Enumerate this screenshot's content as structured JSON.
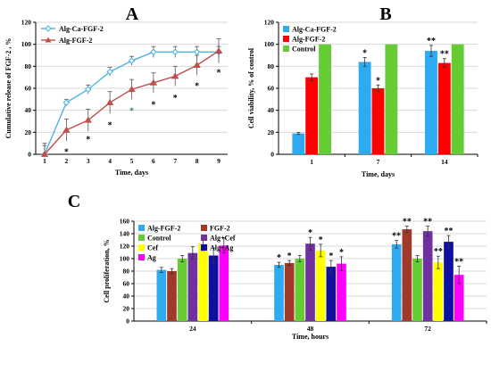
{
  "chart_data": [
    {
      "panel": "A",
      "type": "line",
      "xlabel": "Time, days",
      "ylabel": "Cumulative release of FGF-2 , %",
      "x": [
        1,
        2,
        3,
        4,
        5,
        6,
        7,
        8,
        9
      ],
      "xlim": [
        1,
        9
      ],
      "ylim": [
        0,
        120
      ],
      "yticks": [
        0,
        20,
        40,
        60,
        80,
        100,
        120
      ],
      "grid": "horizontal",
      "legend": "top-left",
      "series": [
        {
          "name": "Alg-Ca-FGF-2",
          "color": "#4fb3e0",
          "marker": "diamond",
          "values": [
            0,
            47,
            59,
            75,
            85,
            93,
            93,
            93,
            93
          ],
          "errors": [
            8,
            3,
            4,
            4,
            4,
            5,
            5,
            5,
            5
          ]
        },
        {
          "name": "Alg-FGF-2",
          "color": "#c0504d",
          "marker": "triangle",
          "values": [
            0,
            22,
            31,
            47,
            59,
            65,
            71,
            81,
            94
          ],
          "errors": [
            10,
            10,
            10,
            10,
            9,
            9,
            9,
            9,
            11
          ]
        }
      ],
      "annotations": [
        {
          "x": 2,
          "label": "*",
          "color": "#000000",
          "y": 3
        },
        {
          "x": 3,
          "label": "*",
          "color": "#000000",
          "y": 14
        },
        {
          "x": 4,
          "label": "*",
          "color": "#000000",
          "y": 27
        },
        {
          "x": 5,
          "label": "*",
          "color": "#2e8b57",
          "y": 40
        },
        {
          "x": 6,
          "label": "*",
          "color": "#000000",
          "y": 46
        },
        {
          "x": 7,
          "label": "*",
          "color": "#000000",
          "y": 52
        },
        {
          "x": 8,
          "label": "*",
          "color": "#000000",
          "y": 63
        },
        {
          "x": 9,
          "label": "*",
          "color": "#000000",
          "y": 75
        }
      ]
    },
    {
      "panel": "B",
      "type": "bar",
      "xlabel": "Time, days",
      "ylabel": "Cell viability, % of control",
      "categories": [
        "1",
        "7",
        "14"
      ],
      "ylim": [
        0,
        120
      ],
      "yticks": [
        0,
        20,
        40,
        60,
        80,
        100,
        120
      ],
      "grid": "horizontal",
      "legend": "top-left",
      "series": [
        {
          "name": "Alg-Ca-FGF-2",
          "color": "#2eaaf0",
          "values": [
            19,
            84,
            94
          ],
          "errors": [
            1,
            4,
            5
          ],
          "stars": [
            "",
            "*",
            "**"
          ]
        },
        {
          "name": "Alg-FGF-2",
          "color": "#ff0000",
          "values": [
            70,
            60,
            83
          ],
          "errors": [
            3,
            3,
            4
          ],
          "stars": [
            "",
            "*",
            "**"
          ]
        },
        {
          "name": "Control",
          "color": "#66cc33",
          "values": [
            100,
            100,
            100
          ],
          "errors": [
            0,
            0,
            0
          ],
          "stars": [
            "",
            "",
            ""
          ]
        }
      ]
    },
    {
      "panel": "C",
      "type": "bar",
      "xlabel": "Time, hours",
      "ylabel": "Cell proliferation, %",
      "categories": [
        "24",
        "48",
        "72"
      ],
      "ylim": [
        0,
        160
      ],
      "yticks": [
        0,
        20,
        40,
        60,
        80,
        100,
        120,
        140,
        160
      ],
      "grid": "horizontal",
      "legend": "top-left",
      "series": [
        {
          "name": "Alg-FGF-2",
          "color": "#2eaaf0",
          "values": [
            82,
            90,
            123
          ],
          "errors": [
            4,
            4,
            6
          ],
          "stars": [
            "",
            "*",
            "**"
          ]
        },
        {
          "name": "FGF-2",
          "color": "#a0392a",
          "values": [
            80,
            93,
            147
          ],
          "errors": [
            4,
            4,
            5
          ],
          "stars": [
            "",
            "*",
            "**"
          ]
        },
        {
          "name": "Control",
          "color": "#66cc33",
          "values": [
            100,
            100,
            100
          ],
          "errors": [
            5,
            5,
            5
          ],
          "stars": [
            "",
            "",
            ""
          ]
        },
        {
          "name": "Alg+Cef",
          "color": "#7030a0",
          "values": [
            109,
            124,
            144
          ],
          "errors": [
            10,
            10,
            8
          ],
          "stars": [
            "",
            "*",
            "**"
          ]
        },
        {
          "name": "Cef",
          "color": "#ffff00",
          "values": [
            124,
            113,
            94
          ],
          "errors": [
            11,
            10,
            10
          ],
          "stars": [
            "",
            "*",
            "**"
          ]
        },
        {
          "name": "Alg+Ag",
          "color": "#1010a0",
          "values": [
            105,
            87,
            127
          ],
          "errors": [
            12,
            10,
            10
          ],
          "stars": [
            "",
            "*",
            "**"
          ]
        },
        {
          "name": "Ag",
          "color": "#ff00ff",
          "values": [
            121,
            92,
            74
          ],
          "errors": [
            12,
            11,
            14
          ],
          "stars": [
            "",
            "*",
            "**"
          ]
        }
      ]
    }
  ]
}
